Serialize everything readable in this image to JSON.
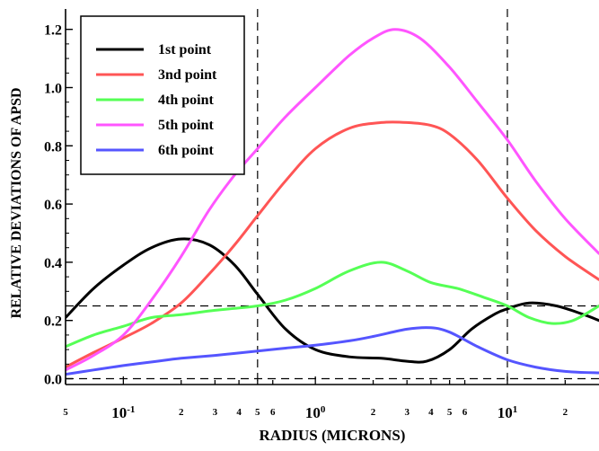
{
  "chart_data": {
    "type": "line",
    "xlabel": "RADIUS (MICRONS)",
    "ylabel": "RELATIVE DEVIATIONS OF APSD",
    "xscale": "log",
    "xlim": [
      0.05,
      30
    ],
    "ylim": [
      -0.02,
      1.27
    ],
    "grid": false,
    "legend_position": "top-left",
    "y_ticks": [
      {
        "v": 0.0,
        "label": "0.0"
      },
      {
        "v": 0.2,
        "label": "0.2"
      },
      {
        "v": 0.4,
        "label": "0.4"
      },
      {
        "v": 0.6,
        "label": "0.6"
      },
      {
        "v": 0.8,
        "label": "0.8"
      },
      {
        "v": 1.0,
        "label": "1.0"
      },
      {
        "v": 1.2,
        "label": "1.2"
      }
    ],
    "x_ticks": [
      {
        "v": 0.05,
        "label": "5",
        "major": false
      },
      {
        "v": 0.1,
        "base": "10",
        "exp": "-1",
        "major": true
      },
      {
        "v": 0.2,
        "label": "2",
        "major": false
      },
      {
        "v": 0.3,
        "label": "3",
        "major": false
      },
      {
        "v": 0.4,
        "label": "4",
        "major": false
      },
      {
        "v": 0.5,
        "label": "5",
        "major": false
      },
      {
        "v": 0.6,
        "label": "6",
        "major": false
      },
      {
        "v": 1,
        "base": "10",
        "exp": "0",
        "major": true
      },
      {
        "v": 2,
        "label": "2",
        "major": false
      },
      {
        "v": 3,
        "label": "3",
        "major": false
      },
      {
        "v": 4,
        "label": "4",
        "major": false
      },
      {
        "v": 5,
        "label": "5",
        "major": false
      },
      {
        "v": 6,
        "label": "6",
        "major": false
      },
      {
        "v": 10,
        "base": "10",
        "exp": "1",
        "major": true
      },
      {
        "v": 20,
        "label": "2",
        "major": false
      }
    ],
    "reference_lines": {
      "vertical_x": [
        0.5,
        10
      ],
      "horizontal_y": [
        0.25,
        0.0
      ]
    },
    "series": [
      {
        "name": "1st point",
        "color": "#000000",
        "x": [
          0.05,
          0.07,
          0.1,
          0.14,
          0.2,
          0.28,
          0.38,
          0.5,
          0.7,
          1.0,
          1.5,
          2.2,
          3.0,
          3.8,
          5.0,
          6.5,
          8.5,
          10,
          13,
          18,
          25,
          30
        ],
        "y": [
          0.21,
          0.31,
          0.39,
          0.45,
          0.48,
          0.46,
          0.39,
          0.29,
          0.17,
          0.1,
          0.075,
          0.07,
          0.06,
          0.06,
          0.1,
          0.17,
          0.22,
          0.24,
          0.26,
          0.25,
          0.22,
          0.2
        ]
      },
      {
        "name": "3nd point",
        "color": "#ff5555",
        "x": [
          0.05,
          0.07,
          0.1,
          0.14,
          0.2,
          0.28,
          0.38,
          0.5,
          0.7,
          1.0,
          1.5,
          2.2,
          3.0,
          4.0,
          5.0,
          7.0,
          10,
          14,
          20,
          30
        ],
        "y": [
          0.04,
          0.09,
          0.14,
          0.19,
          0.26,
          0.36,
          0.46,
          0.56,
          0.68,
          0.79,
          0.86,
          0.88,
          0.88,
          0.87,
          0.84,
          0.75,
          0.62,
          0.51,
          0.42,
          0.34
        ]
      },
      {
        "name": "4th point",
        "color": "#55ff55",
        "x": [
          0.05,
          0.07,
          0.1,
          0.14,
          0.2,
          0.3,
          0.5,
          0.7,
          1.0,
          1.5,
          2.2,
          3.0,
          4.0,
          5.5,
          7.5,
          10,
          13,
          17,
          22,
          30
        ],
        "y": [
          0.11,
          0.15,
          0.18,
          0.21,
          0.22,
          0.235,
          0.25,
          0.27,
          0.31,
          0.37,
          0.4,
          0.37,
          0.33,
          0.31,
          0.28,
          0.25,
          0.21,
          0.19,
          0.2,
          0.25
        ]
      },
      {
        "name": "5th point",
        "color": "#ff55ff",
        "x": [
          0.05,
          0.07,
          0.1,
          0.14,
          0.2,
          0.28,
          0.38,
          0.5,
          0.7,
          1.0,
          1.5,
          2.0,
          2.6,
          3.5,
          5.0,
          7.0,
          10,
          14,
          20,
          30
        ],
        "y": [
          0.03,
          0.08,
          0.15,
          0.27,
          0.42,
          0.58,
          0.7,
          0.79,
          0.9,
          1.0,
          1.11,
          1.17,
          1.2,
          1.17,
          1.07,
          0.95,
          0.82,
          0.68,
          0.55,
          0.43
        ]
      },
      {
        "name": "6th point",
        "color": "#5555ff",
        "x": [
          0.05,
          0.07,
          0.1,
          0.15,
          0.2,
          0.3,
          0.5,
          0.7,
          1.0,
          1.5,
          2.0,
          3.0,
          4.0,
          5.0,
          7.0,
          10,
          14,
          20,
          30
        ],
        "y": [
          0.015,
          0.03,
          0.045,
          0.06,
          0.07,
          0.08,
          0.095,
          0.105,
          0.115,
          0.13,
          0.145,
          0.17,
          0.175,
          0.16,
          0.11,
          0.065,
          0.04,
          0.025,
          0.02
        ]
      }
    ]
  }
}
